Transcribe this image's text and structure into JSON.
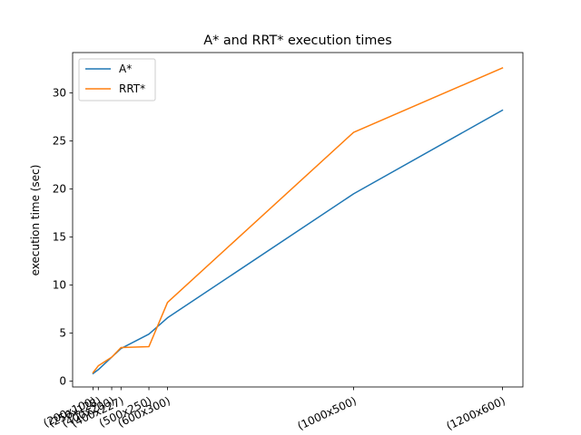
{
  "chart_data": {
    "type": "line",
    "title": "A* and RRT* execution times",
    "xlabel": "",
    "ylabel": "execution time (sec)",
    "x": [
      200,
      256,
      400,
      500,
      800,
      1000,
      3000,
      4600
    ],
    "xtick_labels": [
      "(200x100)",
      "(256x128)",
      "(400x200)",
      "(400x227)",
      "(500x250)",
      "(600x300)",
      "(1000x500)",
      "(1200x600)"
    ],
    "ylim": [
      -0.6,
      34.2
    ],
    "yticks": [
      0,
      5,
      10,
      15,
      20,
      25,
      30
    ],
    "grid": false,
    "legend_position": "top-left",
    "series": [
      {
        "name": "A*",
        "color": "#1f77b4",
        "values": [
          0.8,
          1.2,
          2.5,
          3.4,
          4.9,
          6.6,
          19.5,
          28.2
        ]
      },
      {
        "name": "RRT*",
        "color": "#ff7f0e",
        "values": [
          0.9,
          1.6,
          2.5,
          3.5,
          3.6,
          8.2,
          25.9,
          32.6
        ]
      }
    ]
  }
}
